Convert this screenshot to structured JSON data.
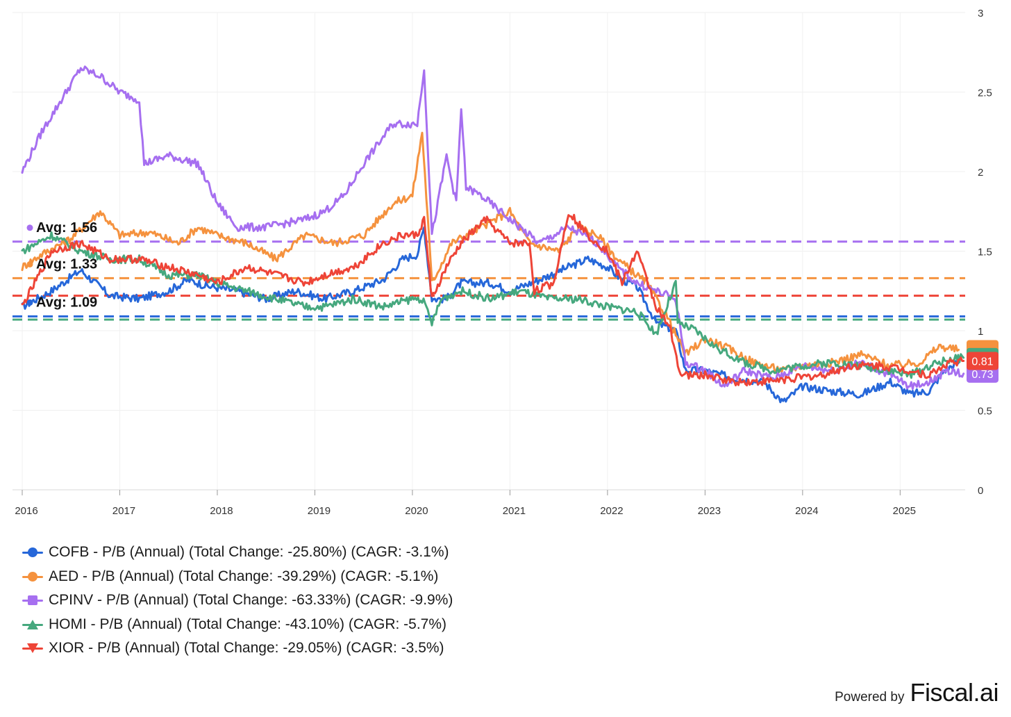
{
  "chart_data": {
    "type": "line",
    "x_axis": {
      "range": [
        "2016-01-01",
        "2025-09-01"
      ],
      "ticks": [
        "2016",
        "2017",
        "2018",
        "2019",
        "2020",
        "2021",
        "2022",
        "2023",
        "2024",
        "2025"
      ]
    },
    "y_axis": {
      "range": [
        0,
        3
      ],
      "ticks": [
        "0",
        "0.5",
        "1",
        "1.5",
        "2",
        "2.5",
        "3"
      ],
      "position": "right"
    },
    "grid": true,
    "legend_placement": "bottom",
    "series": [
      {
        "name": "COFB - P/B (Annual) (Total Change: -25.80%) (CAGR: -3.1%)",
        "color": "#2667d9",
        "marker": "circle",
        "avg": 1.09,
        "avg_label": "Avg: 1.09",
        "last_value": "",
        "points": [
          [
            2016.0,
            1.15
          ],
          [
            2016.3,
            1.25
          ],
          [
            2016.6,
            1.38
          ],
          [
            2016.9,
            1.22
          ],
          [
            2017.2,
            1.2
          ],
          [
            2017.5,
            1.25
          ],
          [
            2017.7,
            1.32
          ],
          [
            2017.9,
            1.28
          ],
          [
            2018.2,
            1.25
          ],
          [
            2018.5,
            1.2
          ],
          [
            2018.8,
            1.25
          ],
          [
            2019.1,
            1.2
          ],
          [
            2019.4,
            1.25
          ],
          [
            2019.7,
            1.32
          ],
          [
            2019.9,
            1.45
          ],
          [
            2020.05,
            1.48
          ],
          [
            2020.12,
            1.65
          ],
          [
            2020.2,
            1.2
          ],
          [
            2020.35,
            1.2
          ],
          [
            2020.5,
            1.3
          ],
          [
            2020.8,
            1.3
          ],
          [
            2021.0,
            1.25
          ],
          [
            2021.3,
            1.32
          ],
          [
            2021.6,
            1.4
          ],
          [
            2021.8,
            1.45
          ],
          [
            2022.0,
            1.4
          ],
          [
            2022.15,
            1.32
          ],
          [
            2022.3,
            1.28
          ],
          [
            2022.5,
            1.05
          ],
          [
            2022.7,
            1.0
          ],
          [
            2022.8,
            0.75
          ],
          [
            2023.0,
            0.75
          ],
          [
            2023.3,
            0.7
          ],
          [
            2023.6,
            0.68
          ],
          [
            2023.8,
            0.55
          ],
          [
            2024.0,
            0.65
          ],
          [
            2024.3,
            0.62
          ],
          [
            2024.6,
            0.6
          ],
          [
            2024.9,
            0.68
          ],
          [
            2025.1,
            0.6
          ],
          [
            2025.3,
            0.62
          ],
          [
            2025.45,
            0.75
          ],
          [
            2025.6,
            0.8
          ]
        ]
      },
      {
        "name": "AED - P/B (Annual) (Total Change: -39.29%) (CAGR: -5.1%)",
        "color": "#f5923e",
        "marker": "circle",
        "avg": 1.33,
        "avg_label": "Avg: 1.33",
        "last_value": "",
        "points": [
          [
            2016.0,
            1.4
          ],
          [
            2016.2,
            1.48
          ],
          [
            2016.5,
            1.58
          ],
          [
            2016.8,
            1.75
          ],
          [
            2017.0,
            1.6
          ],
          [
            2017.3,
            1.62
          ],
          [
            2017.6,
            1.55
          ],
          [
            2017.8,
            1.65
          ],
          [
            2018.0,
            1.6
          ],
          [
            2018.3,
            1.55
          ],
          [
            2018.6,
            1.45
          ],
          [
            2018.9,
            1.6
          ],
          [
            2019.2,
            1.55
          ],
          [
            2019.5,
            1.6
          ],
          [
            2019.8,
            1.8
          ],
          [
            2020.0,
            1.85
          ],
          [
            2020.1,
            2.25
          ],
          [
            2020.2,
            1.3
          ],
          [
            2020.4,
            1.55
          ],
          [
            2020.7,
            1.65
          ],
          [
            2021.0,
            1.75
          ],
          [
            2021.2,
            1.55
          ],
          [
            2021.5,
            1.5
          ],
          [
            2021.7,
            1.65
          ],
          [
            2021.9,
            1.6
          ],
          [
            2022.1,
            1.45
          ],
          [
            2022.4,
            1.3
          ],
          [
            2022.6,
            1.1
          ],
          [
            2022.8,
            0.85
          ],
          [
            2023.0,
            0.95
          ],
          [
            2023.2,
            0.9
          ],
          [
            2023.5,
            0.8
          ],
          [
            2023.8,
            0.75
          ],
          [
            2024.0,
            0.78
          ],
          [
            2024.3,
            0.8
          ],
          [
            2024.6,
            0.85
          ],
          [
            2024.9,
            0.78
          ],
          [
            2025.2,
            0.8
          ],
          [
            2025.4,
            0.9
          ],
          [
            2025.6,
            0.88
          ]
        ]
      },
      {
        "name": "CPINV - P/B (Annual) (Total Change: -63.33%) (CAGR: -9.9%)",
        "color": "#a66ff0",
        "marker": "square",
        "avg": 1.56,
        "avg_label": "Avg: 1.56",
        "last_value": "0.73",
        "points": [
          [
            2016.0,
            2.0
          ],
          [
            2016.2,
            2.25
          ],
          [
            2016.4,
            2.45
          ],
          [
            2016.6,
            2.65
          ],
          [
            2016.8,
            2.6
          ],
          [
            2017.0,
            2.5
          ],
          [
            2017.2,
            2.45
          ],
          [
            2017.25,
            2.05
          ],
          [
            2017.5,
            2.1
          ],
          [
            2017.8,
            2.05
          ],
          [
            2018.0,
            1.8
          ],
          [
            2018.2,
            1.65
          ],
          [
            2018.5,
            1.65
          ],
          [
            2018.9,
            1.7
          ],
          [
            2019.1,
            1.75
          ],
          [
            2019.3,
            1.85
          ],
          [
            2019.5,
            2.05
          ],
          [
            2019.8,
            2.3
          ],
          [
            2020.05,
            2.3
          ],
          [
            2020.12,
            2.65
          ],
          [
            2020.2,
            1.6
          ],
          [
            2020.35,
            2.1
          ],
          [
            2020.45,
            1.8
          ],
          [
            2020.5,
            2.4
          ],
          [
            2020.55,
            1.9
          ],
          [
            2020.7,
            1.85
          ],
          [
            2021.0,
            1.7
          ],
          [
            2021.3,
            1.55
          ],
          [
            2021.6,
            1.65
          ],
          [
            2021.9,
            1.55
          ],
          [
            2022.1,
            1.4
          ],
          [
            2022.3,
            1.3
          ],
          [
            2022.5,
            1.25
          ],
          [
            2022.7,
            1.2
          ],
          [
            2022.8,
            0.8
          ],
          [
            2023.0,
            0.75
          ],
          [
            2023.2,
            0.65
          ],
          [
            2023.4,
            0.75
          ],
          [
            2023.7,
            0.7
          ],
          [
            2024.0,
            0.78
          ],
          [
            2024.3,
            0.75
          ],
          [
            2024.6,
            0.8
          ],
          [
            2024.9,
            0.72
          ],
          [
            2025.1,
            0.65
          ],
          [
            2025.3,
            0.68
          ],
          [
            2025.5,
            0.75
          ],
          [
            2025.65,
            0.73
          ]
        ]
      },
      {
        "name": "HOMI - P/B (Annual) (Total Change: -43.10%) (CAGR: -5.7%)",
        "color": "#46a87e",
        "marker": "triangle-up",
        "avg": 1.07,
        "avg_label": "",
        "last_value": "",
        "points": [
          [
            2016.0,
            1.5
          ],
          [
            2016.3,
            1.6
          ],
          [
            2016.6,
            1.5
          ],
          [
            2016.9,
            1.45
          ],
          [
            2017.2,
            1.45
          ],
          [
            2017.5,
            1.35
          ],
          [
            2017.8,
            1.35
          ],
          [
            2018.0,
            1.3
          ],
          [
            2018.3,
            1.25
          ],
          [
            2018.6,
            1.2
          ],
          [
            2018.9,
            1.15
          ],
          [
            2019.1,
            1.15
          ],
          [
            2019.4,
            1.2
          ],
          [
            2019.7,
            1.15
          ],
          [
            2020.0,
            1.2
          ],
          [
            2020.1,
            1.2
          ],
          [
            2020.2,
            1.05
          ],
          [
            2020.3,
            1.2
          ],
          [
            2020.5,
            1.25
          ],
          [
            2020.8,
            1.2
          ],
          [
            2021.1,
            1.25
          ],
          [
            2021.4,
            1.2
          ],
          [
            2021.7,
            1.2
          ],
          [
            2022.0,
            1.15
          ],
          [
            2022.3,
            1.12
          ],
          [
            2022.5,
            0.98
          ],
          [
            2022.7,
            1.3
          ],
          [
            2022.72,
            1.05
          ],
          [
            2022.9,
            1.0
          ],
          [
            2023.1,
            0.9
          ],
          [
            2023.4,
            0.8
          ],
          [
            2023.7,
            0.75
          ],
          [
            2024.0,
            0.78
          ],
          [
            2024.3,
            0.8
          ],
          [
            2024.6,
            0.78
          ],
          [
            2024.9,
            0.75
          ],
          [
            2025.1,
            0.72
          ],
          [
            2025.3,
            0.78
          ],
          [
            2025.5,
            0.82
          ],
          [
            2025.65,
            0.83
          ]
        ]
      },
      {
        "name": "XIOR - P/B (Annual) (Total Change: -29.05%) (CAGR: -3.5%)",
        "color": "#ee4437",
        "marker": "triangle-down",
        "avg": 1.22,
        "avg_label": "",
        "last_value": "0.81",
        "points": [
          [
            2016.0,
            1.15
          ],
          [
            2016.3,
            1.5
          ],
          [
            2016.6,
            1.55
          ],
          [
            2016.9,
            1.45
          ],
          [
            2017.2,
            1.45
          ],
          [
            2017.5,
            1.4
          ],
          [
            2017.8,
            1.35
          ],
          [
            2018.0,
            1.3
          ],
          [
            2018.3,
            1.4
          ],
          [
            2018.6,
            1.35
          ],
          [
            2018.9,
            1.3
          ],
          [
            2019.1,
            1.35
          ],
          [
            2019.4,
            1.4
          ],
          [
            2019.7,
            1.55
          ],
          [
            2019.9,
            1.6
          ],
          [
            2020.05,
            1.6
          ],
          [
            2020.12,
            1.7
          ],
          [
            2020.2,
            1.2
          ],
          [
            2020.35,
            1.4
          ],
          [
            2020.5,
            1.55
          ],
          [
            2020.75,
            1.7
          ],
          [
            2021.0,
            1.55
          ],
          [
            2021.2,
            1.55
          ],
          [
            2021.25,
            1.25
          ],
          [
            2021.45,
            1.3
          ],
          [
            2021.6,
            1.75
          ],
          [
            2021.8,
            1.6
          ],
          [
            2022.0,
            1.5
          ],
          [
            2022.15,
            1.3
          ],
          [
            2022.3,
            1.5
          ],
          [
            2022.5,
            1.15
          ],
          [
            2022.65,
            1.0
          ],
          [
            2022.75,
            0.72
          ],
          [
            2023.0,
            0.72
          ],
          [
            2023.3,
            0.68
          ],
          [
            2023.6,
            0.68
          ],
          [
            2023.9,
            0.7
          ],
          [
            2024.2,
            0.72
          ],
          [
            2024.5,
            0.78
          ],
          [
            2024.8,
            0.78
          ],
          [
            2025.1,
            0.75
          ],
          [
            2025.3,
            0.72
          ],
          [
            2025.5,
            0.8
          ],
          [
            2025.65,
            0.81
          ]
        ]
      }
    ]
  },
  "footer": {
    "powered_by": "Powered by",
    "brand": "Fiscal.ai"
  }
}
